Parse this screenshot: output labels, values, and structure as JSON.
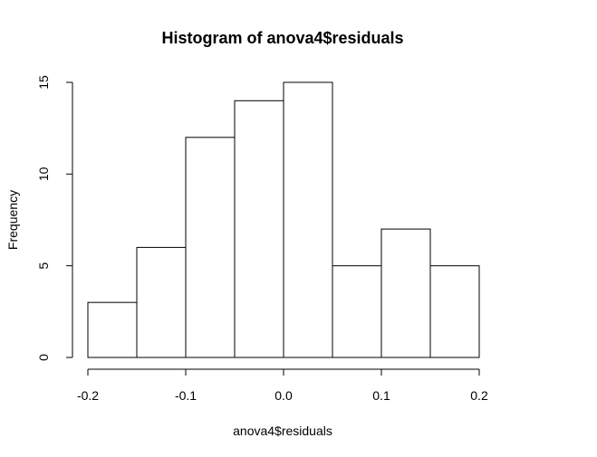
{
  "chart_data": {
    "type": "bar",
    "title": "Histogram of anova4$residuals",
    "xlabel": "anova4$residuals",
    "ylabel": "Frequency",
    "bins": [
      {
        "start": -0.2,
        "end": -0.15,
        "count": 3
      },
      {
        "start": -0.15,
        "end": -0.1,
        "count": 6
      },
      {
        "start": -0.1,
        "end": -0.05,
        "count": 12
      },
      {
        "start": -0.05,
        "end": 0.0,
        "count": 14
      },
      {
        "start": 0.0,
        "end": 0.05,
        "count": 15
      },
      {
        "start": 0.05,
        "end": 0.1,
        "count": 5
      },
      {
        "start": 0.1,
        "end": 0.15,
        "count": 7
      },
      {
        "start": 0.15,
        "end": 0.2,
        "count": 5
      }
    ],
    "xlim": [
      -0.2,
      0.2
    ],
    "ylim": [
      0,
      15
    ],
    "x_ticks": [
      -0.2,
      -0.1,
      0.0,
      0.1,
      0.2
    ],
    "x_tick_labels": [
      "-0.2",
      "-0.1",
      "0.0",
      "0.1",
      "0.2"
    ],
    "y_ticks": [
      0,
      5,
      10,
      15
    ],
    "y_tick_labels": [
      "0",
      "5",
      "10",
      "15"
    ],
    "grid": false,
    "legend": "none",
    "colors": {
      "bar_fill": "#ffffff",
      "bar_stroke": "#000000",
      "background": "#ffffff"
    }
  }
}
